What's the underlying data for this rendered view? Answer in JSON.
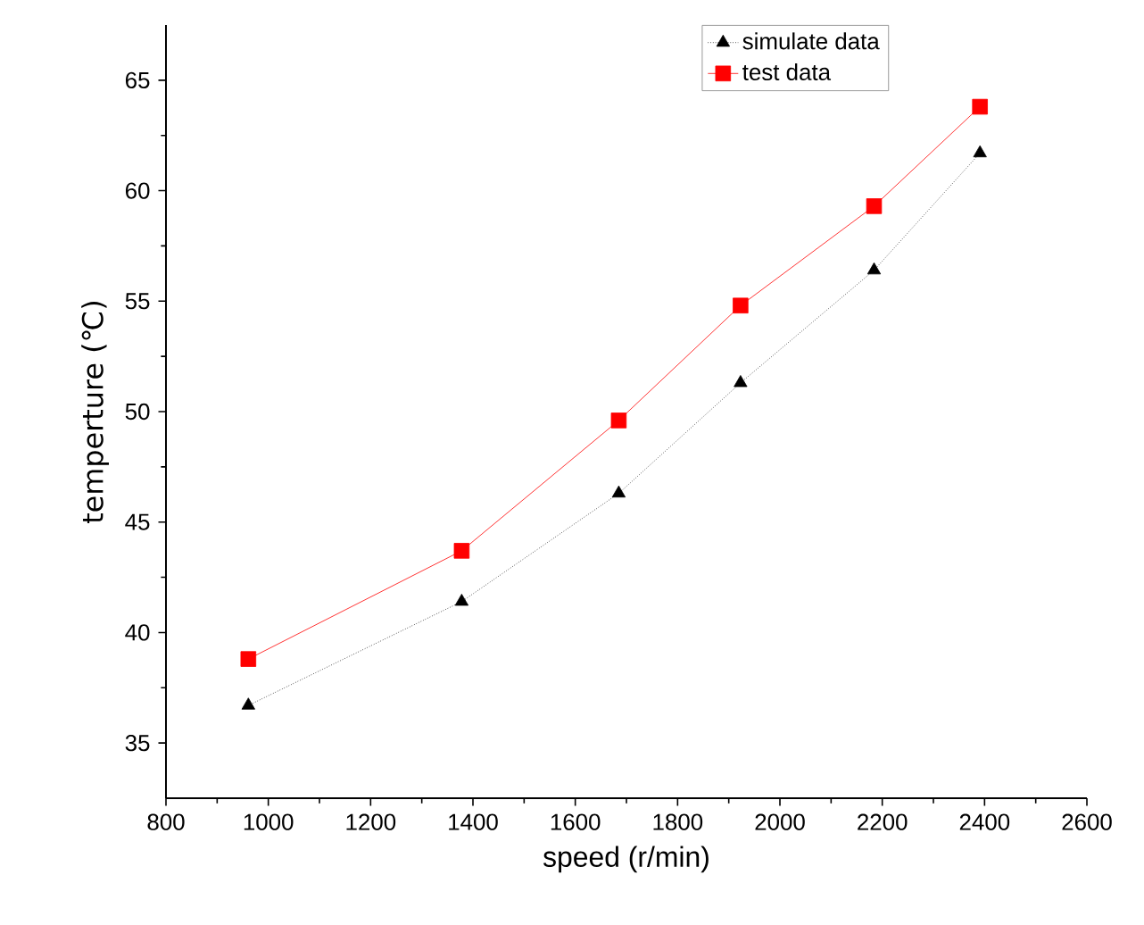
{
  "chart_data": {
    "type": "line",
    "xlabel": "speed (r/min)",
    "ylabel": "temperture (℃)",
    "xlim": [
      800,
      2600
    ],
    "xticks": [
      800,
      1000,
      1200,
      1400,
      1600,
      1800,
      2000,
      2200,
      2400,
      2600
    ],
    "ylim": [
      32.5,
      67.5
    ],
    "yticks": [
      35,
      40,
      45,
      50,
      55,
      60,
      65
    ],
    "legend": "top right",
    "grid": false,
    "series": [
      {
        "name": "simulate data",
        "color": "#000000",
        "marker": "triangle",
        "line_style": "dotted",
        "x": [
          961,
          1378,
          1685,
          1923,
          2184,
          2391
        ],
        "values": [
          36.7,
          41.4,
          46.3,
          51.3,
          56.4,
          61.7
        ]
      },
      {
        "name": "test data",
        "color": "#ff0000",
        "marker": "square",
        "line_style": "solid",
        "x": [
          961,
          1378,
          1685,
          1923,
          2184,
          2391
        ],
        "values": [
          38.8,
          43.7,
          49.6,
          54.8,
          59.3,
          63.8
        ]
      }
    ]
  }
}
